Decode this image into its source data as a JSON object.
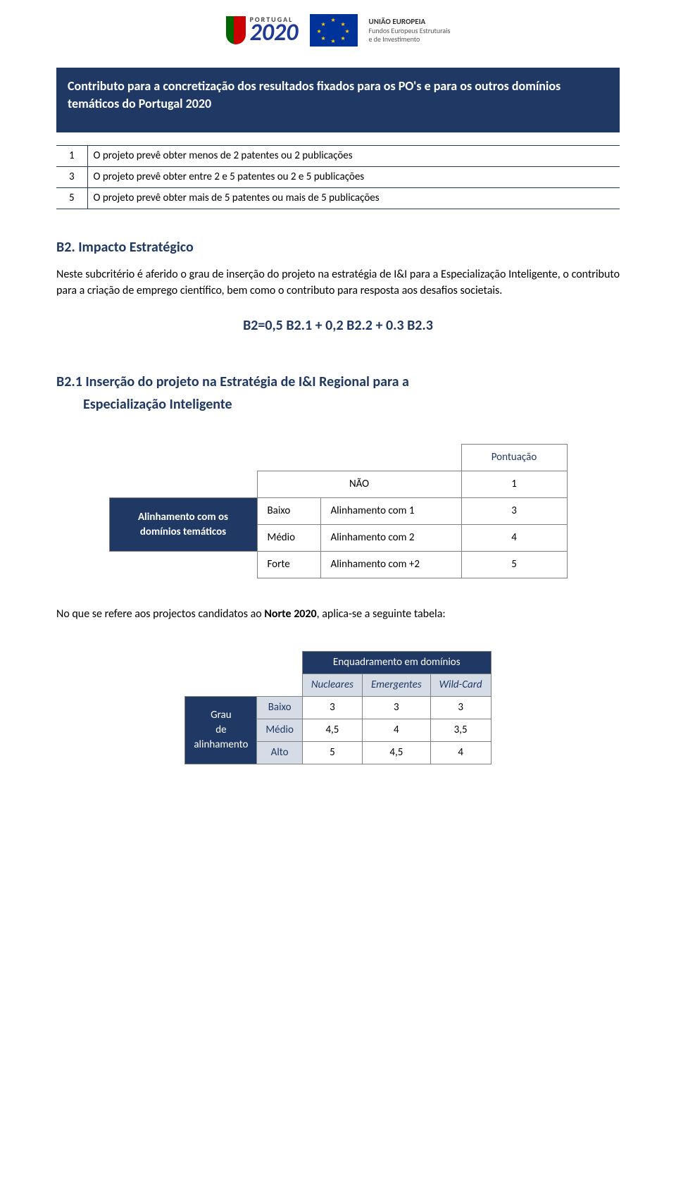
{
  "header": {
    "pt_small": "PORTUGAL",
    "pt_big": "2020",
    "eu_line1": "UNIÃO EUROPEIA",
    "eu_line2": "Fundos Europeus Estruturais",
    "eu_line3": "e de Investimento"
  },
  "banner": "Contributo para a concretização dos resultados fixados para os PO's e para os outros domínios temáticos do Portugal 2020",
  "table1": {
    "rows": [
      {
        "n": "1",
        "text": "O projeto prevê obter menos de 2 patentes ou 2 publicações"
      },
      {
        "n": "3",
        "text": "O projeto prevê obter entre 2 e 5 patentes ou 2 e 5  publicações"
      },
      {
        "n": "5",
        "text": "O projeto prevê obter mais de 5 patentes ou mais de 5 publicações"
      }
    ]
  },
  "section_b2": {
    "title": "B2. Impacto Estratégico",
    "para": "Neste subcritério é aferido o grau de inserção do projeto na estratégia de I&I para a Especialização Inteligente, o contributo para a criação de emprego científico, bem como o contributo para resposta aos desafios societais.",
    "formula": "B2=0,5 B2.1 + 0,2 B2.2 + 0.3 B2.3"
  },
  "section_b21": {
    "title_l1": "B2.1 Inserção do projeto na Estratégia de I&I Regional para a",
    "title_l2": "Especialização Inteligente"
  },
  "table2": {
    "pont_header": "Pontuação",
    "row_label": "Alinhamento com os domínios temáticos",
    "rows": [
      {
        "lvl": "",
        "desc": "NÃO",
        "score": "1",
        "span_desc": true
      },
      {
        "lvl": "Baixo",
        "desc": "Alinhamento com 1",
        "score": "3"
      },
      {
        "lvl": "Médio",
        "desc": "Alinhamento com 2",
        "score": "4"
      },
      {
        "lvl": "Forte",
        "desc": "Alinhamento com +2",
        "score": "5"
      }
    ]
  },
  "note": "No que se refere aos projectos candidatos ao Norte 2020, aplica-se a seguinte tabela:",
  "table3": {
    "top_header": "Enquadramento em domínios",
    "sub_headers": [
      "Nucleares",
      "Emergentes",
      "Wild-Card"
    ],
    "side_label": "Grau de alinhamento",
    "rows": [
      {
        "lvl": "Baixo",
        "vals": [
          "3",
          "3",
          "3"
        ]
      },
      {
        "lvl": "Médio",
        "vals": [
          "4,5",
          "4",
          "3,5"
        ]
      },
      {
        "lvl": "Alto",
        "vals": [
          "5",
          "4,5",
          "4"
        ]
      }
    ]
  },
  "colors": {
    "brand_blue": "#1f3864",
    "light_blue": "#d6dce5",
    "border_gray": "#808080",
    "background": "#ffffff"
  }
}
